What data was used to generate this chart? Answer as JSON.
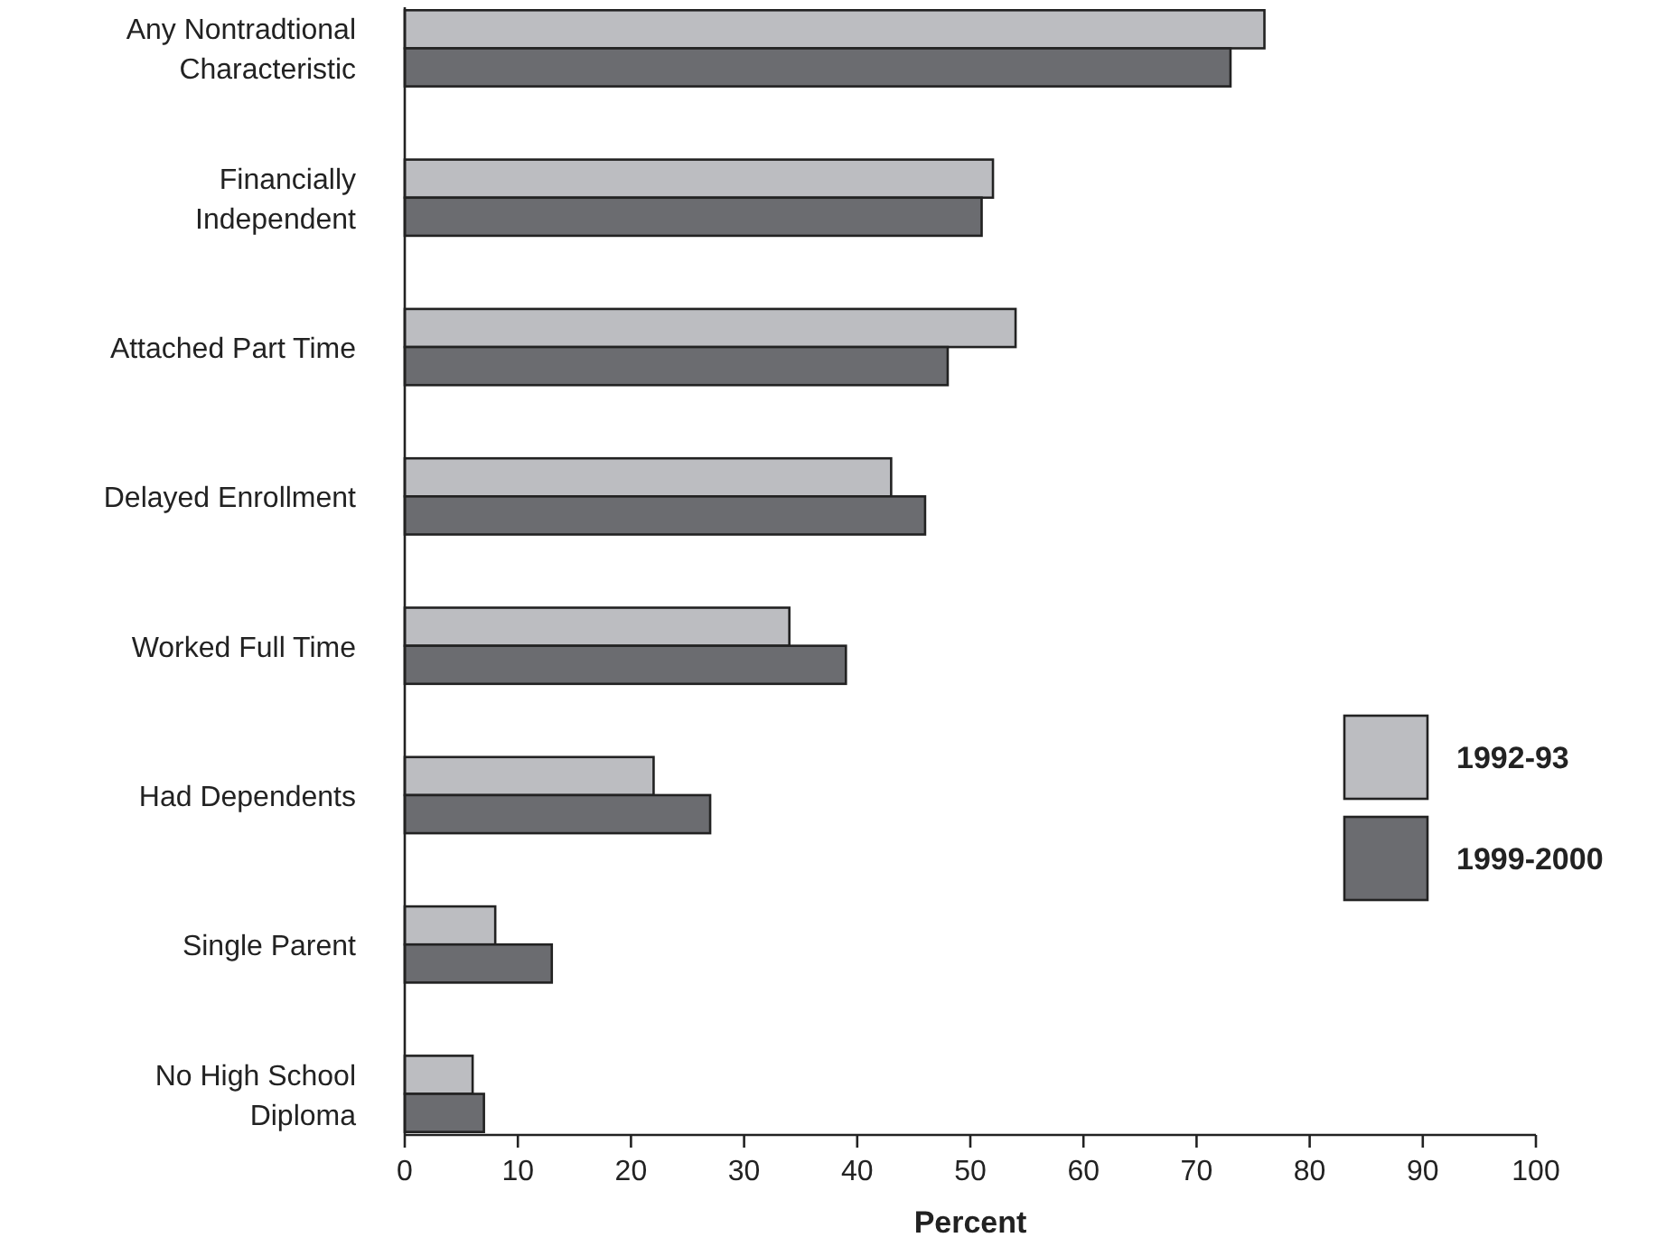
{
  "chart_data": {
    "type": "bar",
    "orientation": "horizontal",
    "xlabel": "Percent",
    "categories": [
      "Any Nontradtional\nCharacteristic",
      "Financially\nIndependent",
      "Attached Part Time",
      "Delayed Enrollment",
      "Worked Full Time",
      "Had Dependents",
      "Single Parent",
      "No High School\nDiploma"
    ],
    "series": [
      {
        "name": "1992-93",
        "color": "#bcbdc1",
        "values": [
          76,
          52,
          54,
          43,
          34,
          22,
          8,
          6
        ]
      },
      {
        "name": "1999-2000",
        "color": "#6b6c70",
        "values": [
          73,
          51,
          48,
          46,
          39,
          27,
          13,
          7
        ]
      }
    ],
    "xlim": [
      0,
      100
    ],
    "xticks": [
      0,
      10,
      20,
      30,
      40,
      50,
      60,
      70,
      80,
      90,
      100
    ],
    "grid": false,
    "legend": "right"
  }
}
